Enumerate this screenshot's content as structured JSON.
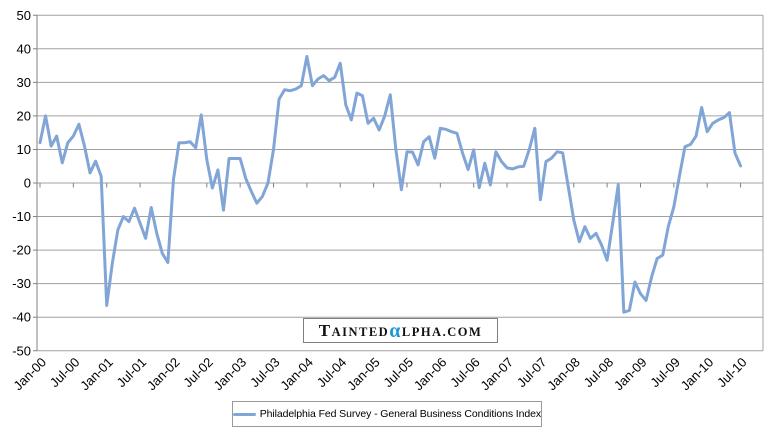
{
  "chart_data": {
    "type": "line",
    "title": "",
    "frequency": "monthly",
    "start_month": "Jan-00",
    "end_month": "Jul-10",
    "x_tick_labels": [
      "Jan-00",
      "Jul-00",
      "Jan-01",
      "Jul-01",
      "Jan-02",
      "Jul-02",
      "Jan-03",
      "Jul-03",
      "Jan-04",
      "Jul-04",
      "Jan-05",
      "Jul-05",
      "Jan-06",
      "Jul-06",
      "Jan-07",
      "Jul-07",
      "Jan-08",
      "Jul-08",
      "Jan-09",
      "Jul-09",
      "Jan-10",
      "Jul-10"
    ],
    "y_tick_values": [
      50,
      40,
      30,
      20,
      10,
      0,
      -10,
      -20,
      -30,
      -40,
      -50
    ],
    "ylim": [
      -50,
      50
    ],
    "grid": "horizontal",
    "legend_position": "bottom",
    "gridline_color": "#a0a0a0",
    "axis_color": "#808080",
    "series": [
      {
        "name": "Philadelphia Fed Survey - General Business Conditions Index",
        "color": "#81A5D6",
        "values": [
          12,
          20,
          11,
          14,
          6,
          12,
          14,
          17.5,
          11,
          3,
          6.5,
          2,
          -36.5,
          -24,
          -14,
          -10,
          -11.5,
          -7.5,
          -12,
          -16.5,
          -7.3,
          -15,
          -21,
          -23.7,
          1,
          12,
          12,
          12.3,
          10.5,
          20.3,
          7,
          -1.5,
          3.9,
          -8.1,
          7.3,
          7.3,
          7.3,
          1.4,
          -2.5,
          -6,
          -4,
          0,
          10,
          25,
          27.8,
          27.5,
          28,
          29,
          37.7,
          29,
          31,
          32,
          30.5,
          31.5,
          35.7,
          23.3,
          18.8,
          26.8,
          26,
          17.8,
          19.3,
          15.8,
          20,
          26.3,
          10,
          -2,
          9.3,
          9.2,
          5.4,
          12.3,
          13.8,
          7.4,
          16.3,
          16,
          15.3,
          14.8,
          8.9,
          4,
          9.9,
          -1.4,
          5.9,
          -0.6,
          9.3,
          6.4,
          4.5,
          4.2,
          4.8,
          5,
          10,
          16.3,
          -5,
          6.4,
          7.4,
          9.3,
          9,
          -1,
          -11,
          -17.5,
          -13,
          -16.5,
          -15,
          -18.5,
          -23,
          -12,
          -0.5,
          -38.5,
          -38,
          -29.5,
          -33,
          -35,
          -28,
          -22.5,
          -21.5,
          -13,
          -7.1,
          2,
          10.8,
          11.5,
          14,
          22.5,
          15.3,
          17.8,
          18.8,
          19.5,
          21,
          8.9,
          5.1
        ]
      }
    ]
  },
  "legend": {
    "label": "Philadelphia Fed Survey - General Business Conditions Index"
  },
  "watermark": {
    "part1": "T",
    "part2": "AINTED",
    "alpha": "α",
    "part3": "LPHA.COM",
    "alpha_color": "#2196D4"
  }
}
